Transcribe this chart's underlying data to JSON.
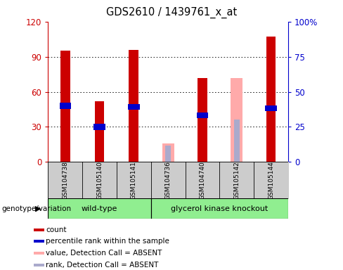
{
  "title": "GDS2610 / 1439761_x_at",
  "samples": [
    "GSM104738",
    "GSM105140",
    "GSM105141",
    "GSM104736",
    "GSM104740",
    "GSM105142",
    "GSM105144"
  ],
  "count": [
    95,
    52,
    96,
    null,
    72,
    null,
    107
  ],
  "rank": [
    48,
    30,
    47,
    null,
    40,
    null,
    46
  ],
  "absent_value": [
    null,
    null,
    null,
    16,
    null,
    72,
    null
  ],
  "absent_rank": [
    null,
    null,
    null,
    14,
    null,
    36,
    null
  ],
  "ylim_left": [
    0,
    120
  ],
  "ylim_right": [
    0,
    100
  ],
  "yticks_left": [
    0,
    30,
    60,
    90,
    120
  ],
  "yticks_right": [
    0,
    25,
    50,
    75,
    100
  ],
  "yticklabels_right": [
    "0",
    "25",
    "50",
    "75",
    "100%"
  ],
  "color_count": "#cc0000",
  "color_rank": "#0000cc",
  "color_absent_value": "#ffaaaa",
  "color_absent_rank": "#aaaacc",
  "color_group_green": "#90ee90",
  "color_tick_left": "#cc0000",
  "color_tick_right": "#0000cc",
  "color_bg_sample": "#cccccc",
  "count_bar_width": 0.28,
  "absent_bar_width": 0.35,
  "group_label_wt": "wild-type",
  "group_label_ko": "glycerol kinase knockout",
  "genotype_label": "genotype/variation",
  "n_wt": 3,
  "n_ko": 4,
  "legend_items": [
    {
      "color": "#cc0000",
      "label": "count"
    },
    {
      "color": "#0000cc",
      "label": "percentile rank within the sample"
    },
    {
      "color": "#ffaaaa",
      "label": "value, Detection Call = ABSENT"
    },
    {
      "color": "#aaaacc",
      "label": "rank, Detection Call = ABSENT"
    }
  ]
}
